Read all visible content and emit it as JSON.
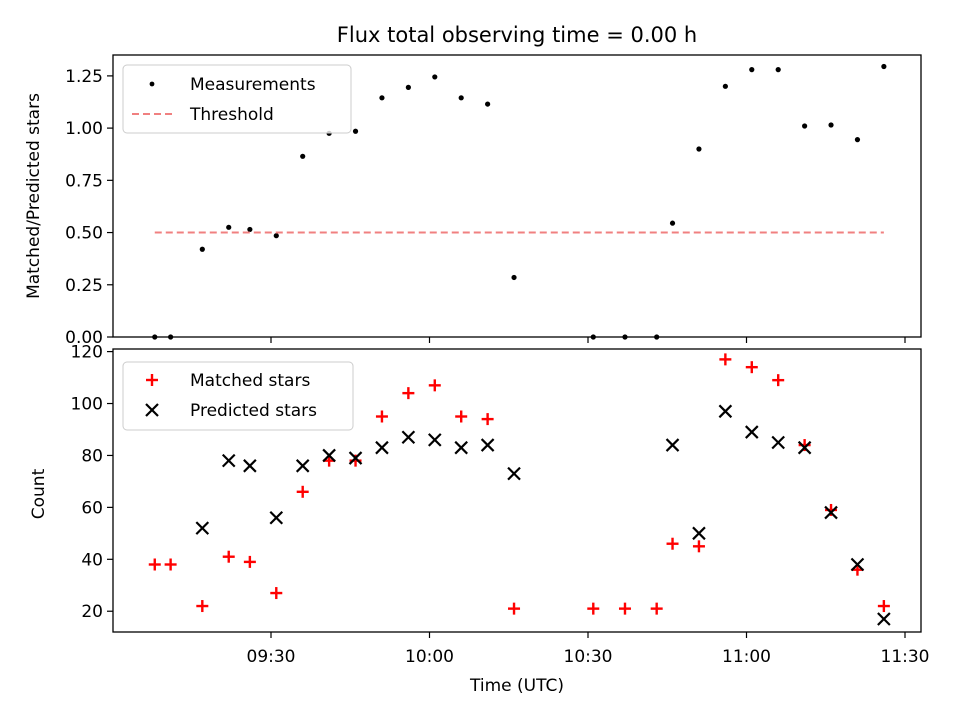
{
  "chart_data": [
    {
      "type": "scatter",
      "title": "Flux total observing time = 0.00 h",
      "xlabel": "",
      "ylabel": "Matched/Predicted stars",
      "ylim": [
        0,
        1.35
      ],
      "yticks": [
        "0.00",
        "0.25",
        "0.50",
        "0.75",
        "1.00",
        "1.25"
      ],
      "legend_position": "upper-left",
      "series": [
        {
          "name": "Measurements",
          "marker": "dot",
          "color": "#000000",
          "x": [
            "09:08",
            "09:11",
            "09:17",
            "09:22",
            "09:26",
            "09:31",
            "09:36",
            "09:41",
            "09:46",
            "09:51",
            "09:56",
            "10:01",
            "10:06",
            "10:11",
            "10:16",
            "10:31",
            "10:37",
            "10:43",
            "10:46",
            "10:51",
            "10:56",
            "11:01",
            "11:06",
            "11:11",
            "11:16",
            "11:21",
            "11:26"
          ],
          "y": [
            0.0,
            0.0,
            0.42,
            0.525,
            0.515,
            0.485,
            0.865,
            0.975,
            0.985,
            1.145,
            1.195,
            1.245,
            1.145,
            1.115,
            0.285,
            0.0,
            0.0,
            0.0,
            0.545,
            0.9,
            1.2,
            1.28,
            1.28,
            1.01,
            1.015,
            0.945,
            1.295
          ]
        },
        {
          "name": "Threshold",
          "style": "dashed",
          "color": "#f08080",
          "x": [
            "09:08",
            "11:26"
          ],
          "y": [
            0.5,
            0.5
          ]
        }
      ]
    },
    {
      "type": "scatter",
      "title": "",
      "xlabel": "Time (UTC)",
      "ylabel": "Count",
      "ylim": [
        12,
        121
      ],
      "yticks": [
        "20",
        "40",
        "60",
        "80",
        "100",
        "120"
      ],
      "xticks": [
        "09:30",
        "10:00",
        "10:30",
        "11:00",
        "11:30"
      ],
      "legend_position": "upper-left",
      "series": [
        {
          "name": "Matched stars",
          "marker": "plus",
          "color": "#ff0000",
          "x": [
            "09:08",
            "09:11",
            "09:17",
            "09:22",
            "09:26",
            "09:31",
            "09:36",
            "09:41",
            "09:46",
            "09:51",
            "09:56",
            "10:01",
            "10:06",
            "10:11",
            "10:16",
            "10:31",
            "10:37",
            "10:43",
            "10:46",
            "10:51",
            "10:56",
            "11:01",
            "11:06",
            "11:11",
            "11:16",
            "11:21",
            "11:26"
          ],
          "y": [
            38,
            38,
            22,
            41,
            39,
            27,
            66,
            78,
            78,
            95,
            104,
            107,
            95,
            94,
            21,
            21,
            21,
            21,
            46,
            45,
            117,
            114,
            109,
            84,
            59,
            36,
            22
          ]
        },
        {
          "name": "Predicted stars",
          "marker": "x",
          "color": "#000000",
          "x": [
            "09:17",
            "09:22",
            "09:26",
            "09:31",
            "09:36",
            "09:41",
            "09:46",
            "09:51",
            "09:56",
            "10:01",
            "10:06",
            "10:11",
            "10:16",
            "10:46",
            "10:51",
            "10:56",
            "11:01",
            "11:06",
            "11:11",
            "11:16",
            "11:21",
            "11:26"
          ],
          "y": [
            52,
            78,
            76,
            56,
            76,
            80,
            79,
            83,
            87,
            86,
            83,
            84,
            73,
            84,
            50,
            97,
            89,
            85,
            83,
            58,
            38,
            17
          ]
        }
      ]
    }
  ]
}
